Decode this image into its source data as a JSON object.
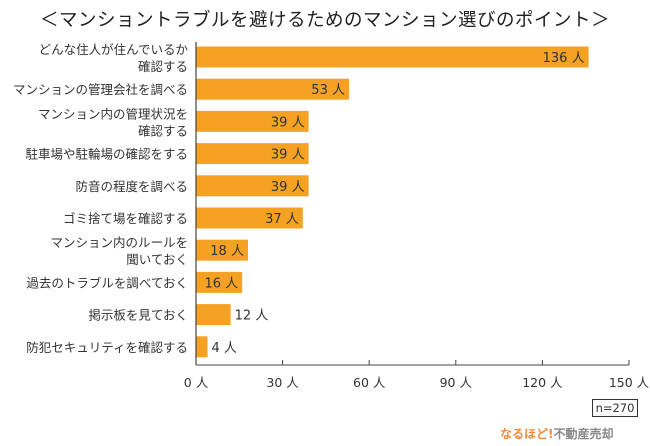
{
  "chart_data": {
    "type": "bar",
    "orientation": "horizontal",
    "title": "＜マンショントラブルを避けるためのマンション選びのポイント＞",
    "categories": [
      [
        "どんな住人が住んでいるか",
        "確認する"
      ],
      [
        "マンションの管理会社を調べる"
      ],
      [
        "マンション内の管理状況を",
        "確認する"
      ],
      [
        "駐車場や駐輪場の確認をする"
      ],
      [
        "防音の程度を調べる"
      ],
      [
        "ゴミ捨て場を確認する"
      ],
      [
        "マンション内のルールを",
        "聞いておく"
      ],
      [
        "過去のトラブルを調べておく"
      ],
      [
        "掲示板を見ておく"
      ],
      [
        "防犯セキュリティを確認する"
      ]
    ],
    "values": [
      136,
      53,
      39,
      39,
      39,
      37,
      18,
      16,
      12,
      4
    ],
    "unit": "人",
    "xlim": [
      0,
      150
    ],
    "xticks": [
      0,
      30,
      60,
      90,
      120,
      150
    ],
    "bar_color": "#f4a124",
    "note": "n=270"
  },
  "logo": {
    "part1": "なるほど",
    "mark": "!",
    "part2": "不動産売却"
  }
}
